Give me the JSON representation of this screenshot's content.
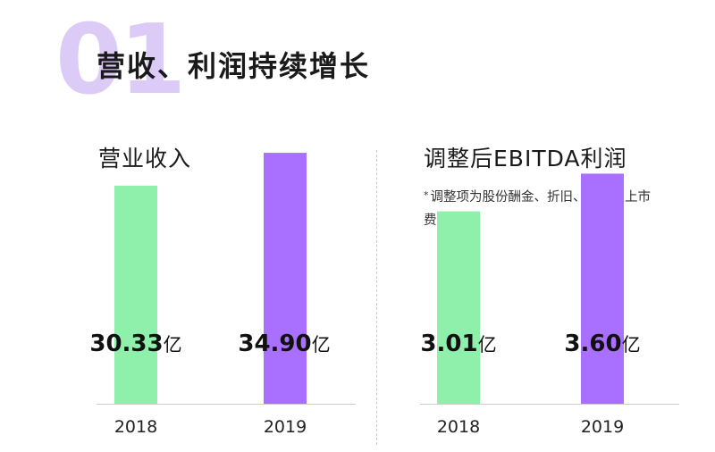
{
  "header": {
    "section_number": "01",
    "title": "营收、利润持续增长"
  },
  "note": {
    "star": "*",
    "text": "调整项为股份酬金、折旧、摊销及上市费用等"
  },
  "colors": {
    "bar_2018": "#8ef0aa",
    "bar_2019": "#a970ff",
    "number_accent": "#dccaf7"
  },
  "chart_data": [
    {
      "type": "bar",
      "title": "营业收入",
      "categories": [
        "2018",
        "2019"
      ],
      "values": [
        30.33,
        34.9
      ],
      "value_labels": [
        "30.33",
        "34.90"
      ],
      "unit": "亿",
      "ylim": [
        0,
        40
      ],
      "grid": false,
      "legend": "none"
    },
    {
      "type": "bar",
      "title": "调整后EBITDA利润",
      "categories": [
        "2018",
        "2019"
      ],
      "values": [
        3.01,
        3.6
      ],
      "value_labels": [
        "3.01",
        "3.60"
      ],
      "unit": "亿",
      "ylim": [
        0,
        4.5
      ],
      "grid": false,
      "legend": "none"
    }
  ]
}
